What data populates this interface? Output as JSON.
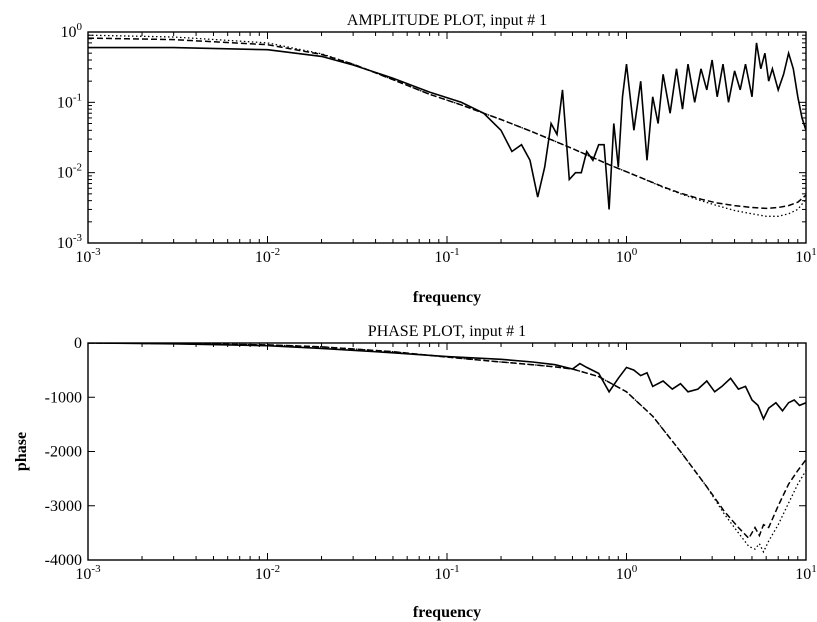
{
  "chart_data": [
    {
      "type": "line",
      "title": "AMPLITUDE PLOT, input # 1",
      "xlabel": "frequency",
      "ylabel": "",
      "xscale": "log",
      "yscale": "log",
      "xlim": [
        0.001,
        10
      ],
      "ylim": [
        0.001,
        1
      ],
      "grid": false,
      "x_ticks": [
        {
          "base": "10",
          "exp": "-3",
          "value": 0.001
        },
        {
          "base": "10",
          "exp": "-2",
          "value": 0.01
        },
        {
          "base": "10",
          "exp": "-1",
          "value": 0.1
        },
        {
          "base": "10",
          "exp": "0",
          "value": 1
        },
        {
          "base": "10",
          "exp": "1",
          "value": 10
        }
      ],
      "y_ticks": [
        {
          "base": "10",
          "exp": "-3",
          "value": 0.001
        },
        {
          "base": "10",
          "exp": "-2",
          "value": 0.01
        },
        {
          "base": "10",
          "exp": "-1",
          "value": 0.1
        },
        {
          "base": "10",
          "exp": "0",
          "value": 1
        }
      ],
      "series": [
        {
          "style": "solid",
          "x": [
            0.001,
            0.003,
            0.01,
            0.02,
            0.03,
            0.05,
            0.08,
            0.12,
            0.16,
            0.2,
            0.23,
            0.26,
            0.29,
            0.32,
            0.35,
            0.38,
            0.41,
            0.44,
            0.48,
            0.52,
            0.56,
            0.6,
            0.65,
            0.7,
            0.75,
            0.8,
            0.85,
            0.9,
            0.95,
            1.0,
            1.1,
            1.2,
            1.3,
            1.4,
            1.5,
            1.6,
            1.75,
            1.9,
            2.05,
            2.2,
            2.4,
            2.6,
            2.8,
            3.0,
            3.2,
            3.45,
            3.7,
            4.0,
            4.3,
            4.6,
            5.0,
            5.3,
            5.6,
            5.9,
            6.2,
            6.5,
            7.0,
            7.5,
            8.0,
            8.5,
            9.0,
            9.5,
            10.0
          ],
          "y": [
            0.6,
            0.6,
            0.56,
            0.45,
            0.34,
            0.22,
            0.14,
            0.1,
            0.07,
            0.04,
            0.02,
            0.025,
            0.015,
            0.0045,
            0.012,
            0.05,
            0.035,
            0.15,
            0.008,
            0.01,
            0.01,
            0.02,
            0.015,
            0.025,
            0.025,
            0.003,
            0.05,
            0.012,
            0.12,
            0.35,
            0.04,
            0.2,
            0.015,
            0.12,
            0.05,
            0.25,
            0.07,
            0.3,
            0.08,
            0.35,
            0.1,
            0.3,
            0.15,
            0.4,
            0.12,
            0.35,
            0.1,
            0.28,
            0.15,
            0.35,
            0.12,
            0.7,
            0.3,
            0.5,
            0.2,
            0.3,
            0.15,
            0.25,
            0.5,
            0.3,
            0.12,
            0.06,
            0.04
          ]
        },
        {
          "style": "dashed",
          "x": [
            0.001,
            0.003,
            0.01,
            0.02,
            0.03,
            0.05,
            0.08,
            0.12,
            0.16,
            0.2,
            0.3,
            0.5,
            0.8,
            1.2,
            1.6,
            2.0,
            2.6,
            3.2,
            4.0,
            5.0,
            6.0,
            7.0,
            8.0,
            9.0,
            10.0
          ],
          "y": [
            0.82,
            0.78,
            0.66,
            0.48,
            0.35,
            0.21,
            0.13,
            0.092,
            0.07,
            0.057,
            0.038,
            0.022,
            0.013,
            0.0085,
            0.0063,
            0.0051,
            0.0042,
            0.0037,
            0.0034,
            0.0032,
            0.0031,
            0.0032,
            0.0034,
            0.0038,
            0.0048
          ]
        },
        {
          "style": "dotted",
          "x": [
            0.001,
            0.003,
            0.01,
            0.02,
            0.03,
            0.05,
            0.08,
            0.12,
            0.16,
            0.2,
            0.3,
            0.5,
            0.8,
            1.2,
            1.6,
            2.0,
            2.6,
            3.2,
            4.0,
            5.0,
            6.0,
            7.0,
            8.0,
            9.0,
            10.0
          ],
          "y": [
            0.9,
            0.85,
            0.7,
            0.49,
            0.35,
            0.21,
            0.13,
            0.092,
            0.07,
            0.057,
            0.038,
            0.022,
            0.013,
            0.0085,
            0.0062,
            0.005,
            0.004,
            0.0034,
            0.0029,
            0.0026,
            0.0024,
            0.0024,
            0.0026,
            0.003,
            0.0042
          ]
        }
      ]
    },
    {
      "type": "line",
      "title": "PHASE PLOT, input # 1",
      "xlabel": "frequency",
      "ylabel": "phase",
      "xscale": "log",
      "yscale": "linear",
      "xlim": [
        0.001,
        10
      ],
      "ylim": [
        -4000,
        0
      ],
      "grid": false,
      "x_ticks": [
        {
          "base": "10",
          "exp": "-3",
          "value": 0.001
        },
        {
          "base": "10",
          "exp": "-2",
          "value": 0.01
        },
        {
          "base": "10",
          "exp": "-1",
          "value": 0.1
        },
        {
          "base": "10",
          "exp": "0",
          "value": 1
        },
        {
          "base": "10",
          "exp": "1",
          "value": 10
        }
      ],
      "y_ticks": [
        {
          "label": "0",
          "value": 0
        },
        {
          "label": "-1000",
          "value": -1000
        },
        {
          "label": "-2000",
          "value": -2000
        },
        {
          "label": "-3000",
          "value": -3000
        },
        {
          "label": "-4000",
          "value": -4000
        }
      ],
      "series": [
        {
          "style": "solid",
          "x": [
            0.001,
            0.003,
            0.01,
            0.02,
            0.05,
            0.1,
            0.2,
            0.3,
            0.4,
            0.5,
            0.55,
            0.6,
            0.7,
            0.8,
            0.9,
            1.0,
            1.1,
            1.2,
            1.3,
            1.4,
            1.6,
            1.8,
            2.0,
            2.2,
            2.5,
            2.8,
            3.1,
            3.4,
            3.8,
            4.2,
            4.6,
            5.0,
            5.4,
            5.8,
            6.2,
            6.8,
            7.4,
            8.0,
            8.6,
            9.2,
            10.0
          ],
          "y": [
            0,
            -15,
            -50,
            -100,
            -180,
            -250,
            -300,
            -350,
            -400,
            -480,
            -380,
            -450,
            -560,
            -900,
            -650,
            -450,
            -500,
            -600,
            -550,
            -800,
            -700,
            -850,
            -750,
            -900,
            -850,
            -700,
            -900,
            -800,
            -650,
            -850,
            -800,
            -1050,
            -1150,
            -1400,
            -1200,
            -1100,
            -1250,
            -1100,
            -1050,
            -1150,
            -1100
          ]
        },
        {
          "style": "dashed",
          "x": [
            0.001,
            0.003,
            0.01,
            0.02,
            0.05,
            0.1,
            0.2,
            0.3,
            0.4,
            0.5,
            0.7,
            1.0,
            1.4,
            2.0,
            2.8,
            3.5,
            4.2,
            4.8,
            5.2,
            5.5,
            5.8,
            6.2,
            7.0,
            8.0,
            9.0,
            10.0
          ],
          "y": [
            0,
            -10,
            -35,
            -70,
            -160,
            -260,
            -350,
            -400,
            -440,
            -480,
            -620,
            -900,
            -1350,
            -2000,
            -2650,
            -3100,
            -3400,
            -3600,
            -3400,
            -3550,
            -3350,
            -3400,
            -3000,
            -2600,
            -2350,
            -2150
          ]
        },
        {
          "style": "dotted",
          "x": [
            0.001,
            0.003,
            0.01,
            0.02,
            0.05,
            0.1,
            0.2,
            0.3,
            0.4,
            0.5,
            0.7,
            1.0,
            1.4,
            2.0,
            2.8,
            3.5,
            4.2,
            4.8,
            5.2,
            5.5,
            5.8,
            6.2,
            7.0,
            8.0,
            9.0,
            10.0
          ],
          "y": [
            0,
            -10,
            -35,
            -70,
            -160,
            -260,
            -350,
            -400,
            -440,
            -480,
            -620,
            -900,
            -1350,
            -2000,
            -2650,
            -3150,
            -3500,
            -3750,
            -3800,
            -3700,
            -3850,
            -3650,
            -3350,
            -2950,
            -2600,
            -2350
          ]
        }
      ]
    }
  ]
}
